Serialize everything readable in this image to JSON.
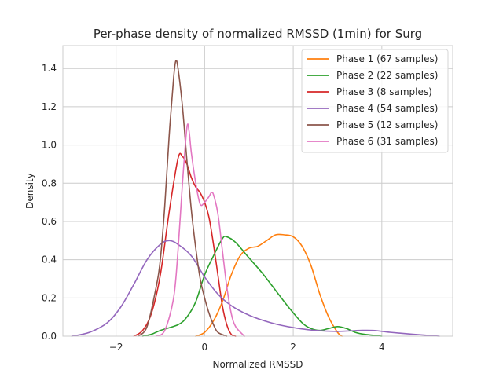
{
  "chart_data": {
    "type": "line",
    "title": "Per-phase density of normalized RMSSD (1min) for Surg",
    "xlabel": "Normalized RMSSD",
    "ylabel": "Density",
    "xlim": [
      -3.2,
      5.6
    ],
    "ylim": [
      0,
      1.52
    ],
    "xticks": [
      -2,
      0,
      2,
      4
    ],
    "yticks": [
      0.0,
      0.2,
      0.4,
      0.6,
      0.8,
      1.0,
      1.2,
      1.4
    ],
    "grid": true,
    "legend_position": "top-right",
    "series": [
      {
        "name": "Phase 1 (67 samples)",
        "color": "#ff7f0e",
        "points": [
          [
            -0.2,
            0.0
          ],
          [
            0.0,
            0.02
          ],
          [
            0.2,
            0.08
          ],
          [
            0.4,
            0.18
          ],
          [
            0.6,
            0.32
          ],
          [
            0.8,
            0.42
          ],
          [
            1.0,
            0.46
          ],
          [
            1.2,
            0.47
          ],
          [
            1.4,
            0.5
          ],
          [
            1.6,
            0.53
          ],
          [
            1.8,
            0.53
          ],
          [
            2.0,
            0.52
          ],
          [
            2.2,
            0.47
          ],
          [
            2.4,
            0.37
          ],
          [
            2.6,
            0.22
          ],
          [
            2.8,
            0.1
          ],
          [
            3.0,
            0.02
          ],
          [
            3.1,
            0.0
          ]
        ]
      },
      {
        "name": "Phase 2 (22 samples)",
        "color": "#2ca02c",
        "points": [
          [
            -1.4,
            0.0
          ],
          [
            -1.2,
            0.01
          ],
          [
            -1.0,
            0.03
          ],
          [
            -0.6,
            0.06
          ],
          [
            -0.4,
            0.1
          ],
          [
            -0.2,
            0.18
          ],
          [
            0.0,
            0.32
          ],
          [
            0.2,
            0.42
          ],
          [
            0.4,
            0.51
          ],
          [
            0.5,
            0.52
          ],
          [
            0.7,
            0.49
          ],
          [
            1.0,
            0.41
          ],
          [
            1.3,
            0.33
          ],
          [
            1.6,
            0.24
          ],
          [
            1.9,
            0.15
          ],
          [
            2.2,
            0.07
          ],
          [
            2.4,
            0.04
          ],
          [
            2.6,
            0.03
          ],
          [
            2.8,
            0.04
          ],
          [
            3.0,
            0.05
          ],
          [
            3.2,
            0.04
          ],
          [
            3.4,
            0.02
          ],
          [
            3.6,
            0.01
          ],
          [
            4.0,
            0.0
          ]
        ]
      },
      {
        "name": "Phase 3 (8 samples)",
        "color": "#d62728",
        "points": [
          [
            -1.6,
            0.0
          ],
          [
            -1.4,
            0.03
          ],
          [
            -1.2,
            0.12
          ],
          [
            -1.0,
            0.32
          ],
          [
            -0.8,
            0.65
          ],
          [
            -0.6,
            0.93
          ],
          [
            -0.5,
            0.94
          ],
          [
            -0.4,
            0.9
          ],
          [
            -0.3,
            0.83
          ],
          [
            -0.2,
            0.78
          ],
          [
            -0.1,
            0.75
          ],
          [
            0.0,
            0.7
          ],
          [
            0.1,
            0.62
          ],
          [
            0.2,
            0.48
          ],
          [
            0.3,
            0.32
          ],
          [
            0.4,
            0.16
          ],
          [
            0.5,
            0.06
          ],
          [
            0.6,
            0.01
          ],
          [
            0.7,
            0.0
          ]
        ]
      },
      {
        "name": "Phase 4 (54 samples)",
        "color": "#9467bd",
        "points": [
          [
            -3.0,
            0.0
          ],
          [
            -2.6,
            0.02
          ],
          [
            -2.2,
            0.07
          ],
          [
            -1.9,
            0.15
          ],
          [
            -1.6,
            0.27
          ],
          [
            -1.3,
            0.4
          ],
          [
            -1.0,
            0.48
          ],
          [
            -0.8,
            0.5
          ],
          [
            -0.6,
            0.48
          ],
          [
            -0.3,
            0.42
          ],
          [
            0.0,
            0.31
          ],
          [
            0.3,
            0.22
          ],
          [
            0.6,
            0.16
          ],
          [
            1.0,
            0.11
          ],
          [
            1.5,
            0.07
          ],
          [
            2.0,
            0.045
          ],
          [
            2.5,
            0.03
          ],
          [
            3.0,
            0.025
          ],
          [
            3.5,
            0.03
          ],
          [
            3.8,
            0.03
          ],
          [
            4.2,
            0.02
          ],
          [
            4.7,
            0.01
          ],
          [
            5.3,
            0.0
          ]
        ]
      },
      {
        "name": "Phase 5 (12 samples)",
        "color": "#8c564b",
        "points": [
          [
            -1.5,
            0.0
          ],
          [
            -1.3,
            0.05
          ],
          [
            -1.1,
            0.25
          ],
          [
            -1.0,
            0.4
          ],
          [
            -0.9,
            0.68
          ],
          [
            -0.8,
            1.05
          ],
          [
            -0.7,
            1.35
          ],
          [
            -0.65,
            1.44
          ],
          [
            -0.6,
            1.4
          ],
          [
            -0.5,
            1.2
          ],
          [
            -0.4,
            0.92
          ],
          [
            -0.3,
            0.66
          ],
          [
            -0.2,
            0.46
          ],
          [
            -0.1,
            0.3
          ],
          [
            0.0,
            0.2
          ],
          [
            0.1,
            0.12
          ],
          [
            0.2,
            0.06
          ],
          [
            0.3,
            0.02
          ],
          [
            0.5,
            0.0
          ]
        ]
      },
      {
        "name": "Phase 6 (31 samples)",
        "color": "#e377c2",
        "points": [
          [
            -1.1,
            0.0
          ],
          [
            -0.9,
            0.03
          ],
          [
            -0.7,
            0.2
          ],
          [
            -0.6,
            0.45
          ],
          [
            -0.5,
            0.8
          ],
          [
            -0.4,
            1.09
          ],
          [
            -0.35,
            1.07
          ],
          [
            -0.3,
            0.96
          ],
          [
            -0.2,
            0.8
          ],
          [
            -0.1,
            0.69
          ],
          [
            0.0,
            0.7
          ],
          [
            0.1,
            0.73
          ],
          [
            0.15,
            0.75
          ],
          [
            0.2,
            0.74
          ],
          [
            0.3,
            0.64
          ],
          [
            0.4,
            0.45
          ],
          [
            0.5,
            0.26
          ],
          [
            0.6,
            0.12
          ],
          [
            0.7,
            0.05
          ],
          [
            0.9,
            0.0
          ]
        ]
      }
    ]
  }
}
